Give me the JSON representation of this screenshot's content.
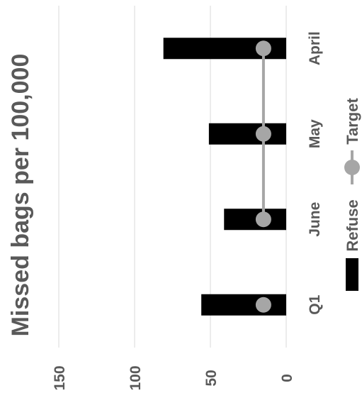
{
  "chart_data": {
    "type": "bar",
    "orientation": "rotated-90-clockwise",
    "title": "Missed bags per 100,000",
    "categories": [
      "April",
      "May",
      "June",
      "Q1"
    ],
    "series": [
      {
        "name": "Refuse",
        "type": "bar",
        "color": "#000000",
        "values": [
          81,
          51,
          41,
          56
        ]
      },
      {
        "name": "Target",
        "type": "line-marker",
        "color": "#a6a6a6",
        "values": [
          15,
          15,
          15,
          15
        ],
        "connected": [
          true,
          true,
          true,
          false
        ]
      }
    ],
    "value_axis": {
      "min": 0,
      "max": 150,
      "ticks": [
        "0",
        "50",
        "100",
        "150"
      ]
    },
    "gridlines": true,
    "legend": {
      "position": "right",
      "entries": [
        "Refuse",
        "Target"
      ]
    }
  }
}
